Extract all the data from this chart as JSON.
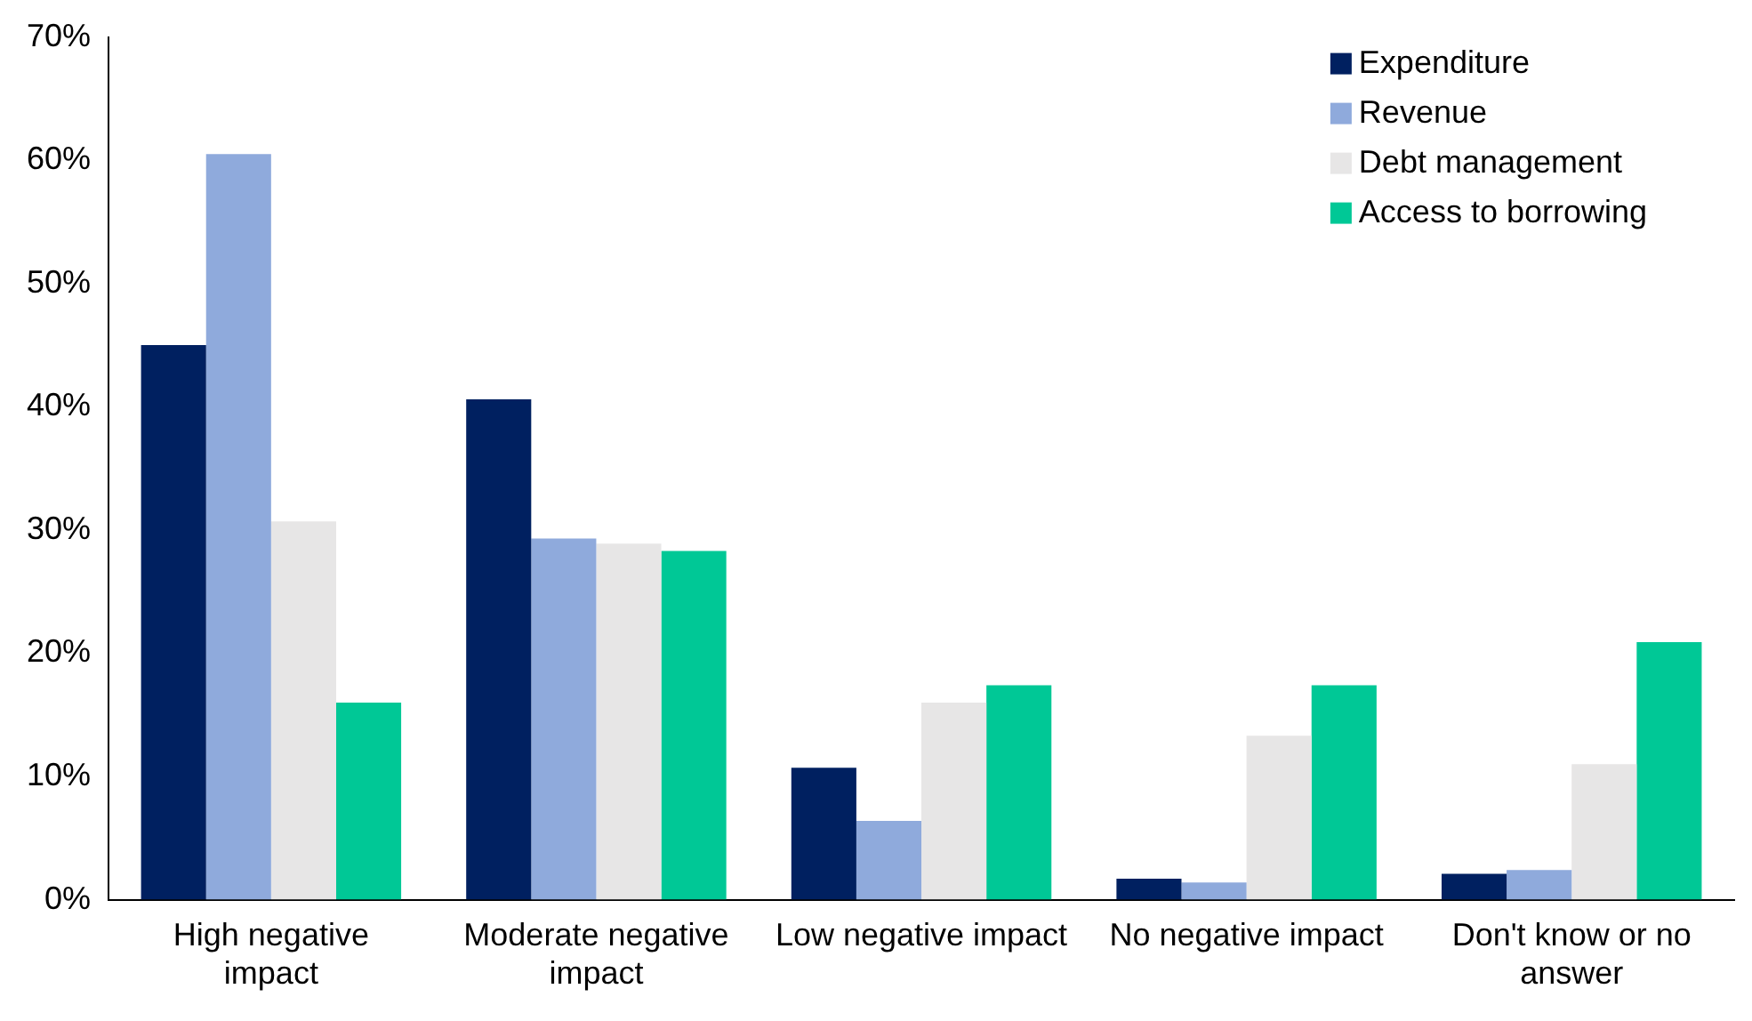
{
  "chart_data": {
    "type": "bar",
    "categories": [
      "High negative impact",
      "Moderate negative impact",
      "Low negative impact",
      "No negative impact",
      "Don't know or no answer"
    ],
    "series": [
      {
        "name": "Expenditure",
        "color": "#002060",
        "values": [
          45,
          40.6,
          10.7,
          1.7,
          2.1
        ]
      },
      {
        "name": "Revenue",
        "color": "#8faadc",
        "values": [
          60.5,
          29.3,
          6.4,
          1.4,
          2.4
        ]
      },
      {
        "name": "Debt management",
        "color": "#e7e6e6",
        "values": [
          30.7,
          28.9,
          16,
          13.3,
          11
        ]
      },
      {
        "name": "Access to borrowing",
        "color": "#00c896",
        "values": [
          16,
          28.3,
          17.4,
          17.4,
          20.9
        ]
      }
    ],
    "ylim": [
      0,
      70
    ],
    "yticks": [
      {
        "value": 0,
        "label": "0%"
      },
      {
        "value": 10,
        "label": "10%"
      },
      {
        "value": 20,
        "label": "20%"
      },
      {
        "value": 30,
        "label": "30%"
      },
      {
        "value": 40,
        "label": "40%"
      },
      {
        "value": 50,
        "label": "50%"
      },
      {
        "value": 60,
        "label": "60%"
      },
      {
        "value": 70,
        "label": "70%"
      }
    ],
    "grid": false,
    "legend": "top right"
  }
}
